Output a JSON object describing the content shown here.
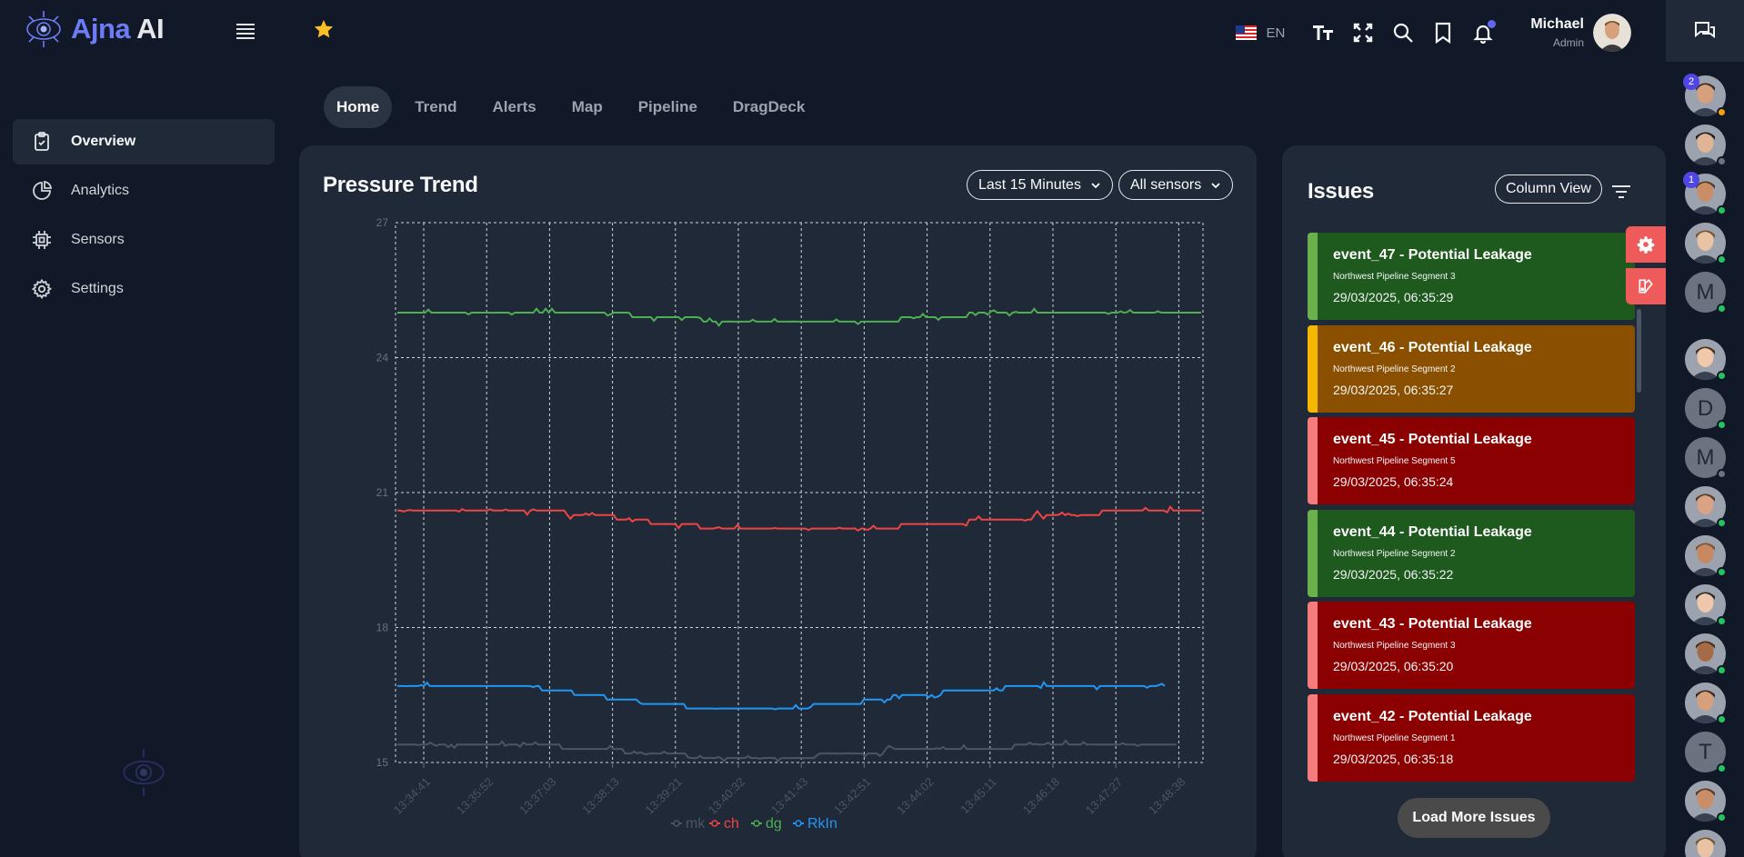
{
  "app": {
    "logo_a": "Ajna",
    "logo_b": " AI"
  },
  "sidebar": {
    "items": [
      {
        "label": "Overview",
        "icon": "clipboard-check-icon",
        "active": true
      },
      {
        "label": "Analytics",
        "icon": "pie-chart-icon",
        "active": false
      },
      {
        "label": "Sensors",
        "icon": "chip-icon",
        "active": false
      },
      {
        "label": "Settings",
        "icon": "gear-icon",
        "active": false
      }
    ]
  },
  "header": {
    "language": "EN",
    "user_name": "Michael",
    "user_role": "Admin",
    "icons": [
      "font-size-icon",
      "fullscreen-icon",
      "search-icon",
      "bookmark-icon",
      "bell-icon"
    ]
  },
  "tabs": [
    {
      "label": "Home",
      "active": true
    },
    {
      "label": "Trend",
      "active": false
    },
    {
      "label": "Alerts",
      "active": false
    },
    {
      "label": "Map",
      "active": false
    },
    {
      "label": "Pipeline",
      "active": false
    },
    {
      "label": "DragDeck",
      "active": false
    }
  ],
  "trend": {
    "title": "Pressure Trend",
    "time_range": "Last 15 Minutes",
    "sensor_filter": "All sensors"
  },
  "chart_data": {
    "type": "line",
    "title": "Pressure Trend",
    "xlabel": "",
    "ylabel": "",
    "ylim": [
      15,
      27
    ],
    "yticks": [
      15,
      18,
      21,
      24,
      27
    ],
    "x_tick_labels": [
      "13:34:41",
      "13:35:52",
      "13:37:03",
      "13:38:13",
      "13:39:21",
      "13:40:32",
      "13:41:43",
      "13:42:51",
      "13:44:02",
      "13:45:11",
      "13:46:18",
      "13:47:27",
      "13:48:38"
    ],
    "grid": true,
    "legend_position": "bottom",
    "series": [
      {
        "name": "mk",
        "color": "#4b5563",
        "values": [
          15.4,
          15.4,
          15.4,
          15.3,
          15.2,
          15.1,
          15.1,
          15.2,
          15.3,
          15.3,
          15.4,
          15.4,
          15.4
        ]
      },
      {
        "name": "ch",
        "color": "#ef4444",
        "values": [
          20.6,
          20.6,
          20.6,
          20.5,
          20.3,
          20.2,
          20.2,
          20.2,
          20.3,
          20.4,
          20.5,
          20.6,
          20.6
        ]
      },
      {
        "name": "dg",
        "color": "#4caf50",
        "values": [
          25.0,
          25.0,
          25.0,
          25.0,
          24.9,
          24.8,
          24.8,
          24.8,
          24.9,
          25.0,
          25.0,
          25.0,
          25.0
        ]
      },
      {
        "name": "RkIn",
        "color": "#2196f3",
        "values": [
          16.7,
          16.7,
          16.7,
          16.5,
          16.3,
          16.2,
          16.2,
          16.3,
          16.5,
          16.6,
          16.7,
          16.7,
          16.7
        ]
      }
    ]
  },
  "issues": {
    "title": "Issues",
    "view_button": "Column View",
    "load_more": "Load More Issues",
    "items": [
      {
        "title": "event_47 - Potential Leakage",
        "segment": "Northwest Pipeline Segment 3",
        "time": "29/03/2025, 06:35:29",
        "bg": "#1e5a1e",
        "stripe": "#6ab04c"
      },
      {
        "title": "event_46 - Potential Leakage",
        "segment": "Northwest Pipeline Segment 2",
        "time": "29/03/2025, 06:35:27",
        "bg": "#8a5000",
        "stripe": "#f5b800"
      },
      {
        "title": "event_45 - Potential Leakage",
        "segment": "Northwest Pipeline Segment 5",
        "time": "29/03/2025, 06:35:24",
        "bg": "#8b0000",
        "stripe": "#f47c7c"
      },
      {
        "title": "event_44 - Potential Leakage",
        "segment": "Northwest Pipeline Segment 2",
        "time": "29/03/2025, 06:35:22",
        "bg": "#1e5a1e",
        "stripe": "#6ab04c"
      },
      {
        "title": "event_43 - Potential Leakage",
        "segment": "Northwest Pipeline Segment 3",
        "time": "29/03/2025, 06:35:20",
        "bg": "#8b0000",
        "stripe": "#f47c7c"
      },
      {
        "title": "event_42 - Potential Leakage",
        "segment": "Northwest Pipeline Segment 1",
        "time": "29/03/2025, 06:35:18",
        "bg": "#8b0000",
        "stripe": "#f47c7c"
      }
    ]
  },
  "contacts": [
    {
      "type": "photo",
      "badge": "2",
      "status": "#f59e0b"
    },
    {
      "type": "photo",
      "badge": "",
      "status": "#6b7280"
    },
    {
      "type": "photo",
      "badge": "1",
      "status": "#22c55e"
    },
    {
      "type": "photo",
      "badge": "",
      "status": "#22c55e"
    },
    {
      "type": "initial",
      "initial": "M",
      "badge": "",
      "status": "#22c55e"
    },
    {
      "type": "photo",
      "badge": "",
      "status": "#22c55e"
    },
    {
      "type": "initial",
      "initial": "D",
      "badge": "",
      "status": "#22c55e"
    },
    {
      "type": "initial",
      "initial": "M",
      "badge": "",
      "status": "#6b7280"
    },
    {
      "type": "photo",
      "badge": "",
      "status": "#22c55e"
    },
    {
      "type": "photo",
      "badge": "",
      "status": "#22c55e"
    },
    {
      "type": "photo",
      "badge": "",
      "status": "#22c55e"
    },
    {
      "type": "photo",
      "badge": "",
      "status": "#22c55e"
    },
    {
      "type": "photo",
      "badge": "",
      "status": "#22c55e"
    },
    {
      "type": "initial",
      "initial": "T",
      "badge": "",
      "status": "#22c55e"
    },
    {
      "type": "photo",
      "badge": "",
      "status": "#22c55e"
    },
    {
      "type": "photo",
      "badge": "",
      "status": "#22c55e"
    }
  ]
}
